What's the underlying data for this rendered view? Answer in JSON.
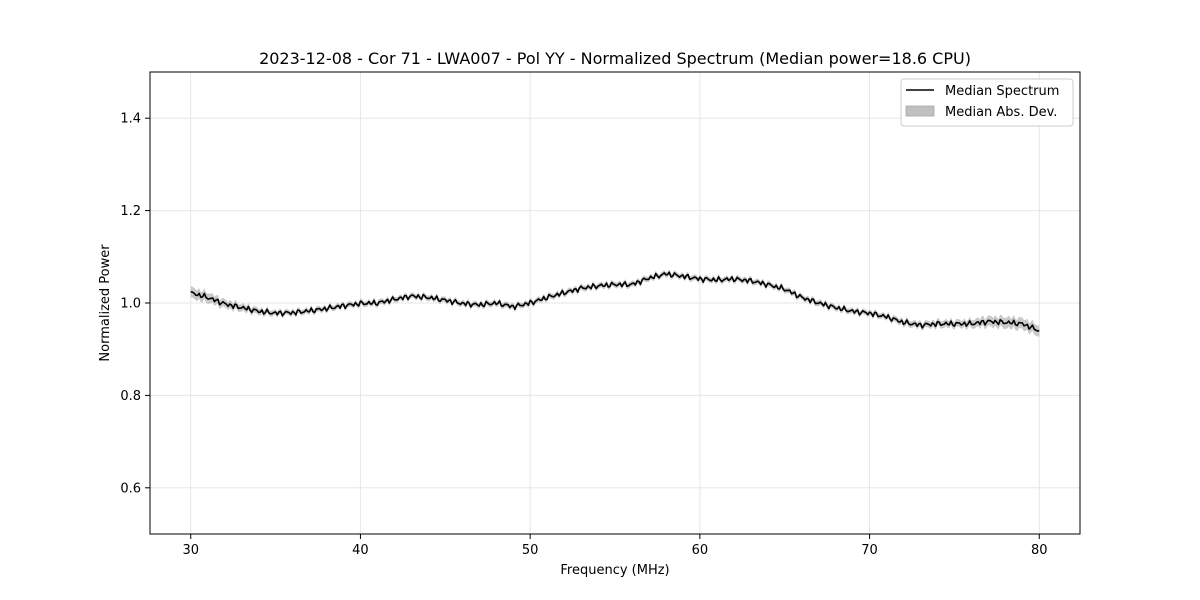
{
  "chart_data": {
    "type": "line",
    "title": "2023-12-08 - Cor 71 - LWA007 - Pol YY - Normalized Spectrum (Median power=18.6 CPU)",
    "xlabel": "Frequency (MHz)",
    "ylabel": "Normalized Power",
    "xlim": [
      27.6,
      82.4
    ],
    "ylim": [
      0.5,
      1.5
    ],
    "x_ticks": [
      30,
      40,
      50,
      60,
      70,
      80
    ],
    "y_ticks": [
      0.6,
      0.8,
      1.0,
      1.2,
      1.4
    ],
    "x_tick_labels": [
      "30",
      "40",
      "50",
      "60",
      "70",
      "80"
    ],
    "y_tick_labels": [
      "0.6",
      "0.8",
      "1.0",
      "1.2",
      "1.4"
    ],
    "grid": true,
    "legend_position": "top-right",
    "legend": [
      "Median Spectrum",
      "Median Abs. Dev."
    ],
    "colors": {
      "line": "#000000",
      "band": "#c0c0c0",
      "grid": "#e6e6e6"
    },
    "series": [
      {
        "name": "Median Spectrum",
        "x": [
          30,
          31,
          32,
          33,
          34,
          35,
          36,
          37,
          38,
          39,
          40,
          41,
          42,
          43,
          44,
          45,
          46,
          47,
          48,
          49,
          50,
          51,
          52,
          53,
          54,
          55,
          56,
          57,
          58,
          59,
          60,
          61,
          62,
          63,
          64,
          65,
          66,
          67,
          68,
          69,
          70,
          71,
          72,
          73,
          74,
          75,
          76,
          77,
          78,
          79,
          80
        ],
        "y": [
          1.022,
          1.012,
          0.998,
          0.99,
          0.982,
          0.978,
          0.979,
          0.983,
          0.988,
          0.994,
          0.999,
          1.0,
          1.008,
          1.015,
          1.012,
          1.006,
          0.999,
          0.996,
          1.0,
          0.992,
          1.0,
          1.012,
          1.022,
          1.032,
          1.037,
          1.04,
          1.04,
          1.054,
          1.063,
          1.058,
          1.052,
          1.05,
          1.052,
          1.048,
          1.04,
          1.03,
          1.012,
          1.0,
          0.99,
          0.982,
          0.978,
          0.97,
          0.958,
          0.952,
          0.955,
          0.955,
          0.955,
          0.96,
          0.958,
          0.955,
          0.94
        ]
      },
      {
        "name": "Median Abs. Dev.",
        "mad": [
          0.012,
          0.011,
          0.009,
          0.008,
          0.007,
          0.006,
          0.006,
          0.006,
          0.006,
          0.006,
          0.006,
          0.006,
          0.006,
          0.006,
          0.006,
          0.006,
          0.006,
          0.006,
          0.006,
          0.006,
          0.006,
          0.006,
          0.006,
          0.006,
          0.006,
          0.006,
          0.006,
          0.006,
          0.006,
          0.006,
          0.006,
          0.006,
          0.006,
          0.006,
          0.006,
          0.006,
          0.006,
          0.006,
          0.006,
          0.006,
          0.006,
          0.006,
          0.007,
          0.007,
          0.008,
          0.008,
          0.009,
          0.011,
          0.012,
          0.012,
          0.012
        ]
      }
    ]
  }
}
